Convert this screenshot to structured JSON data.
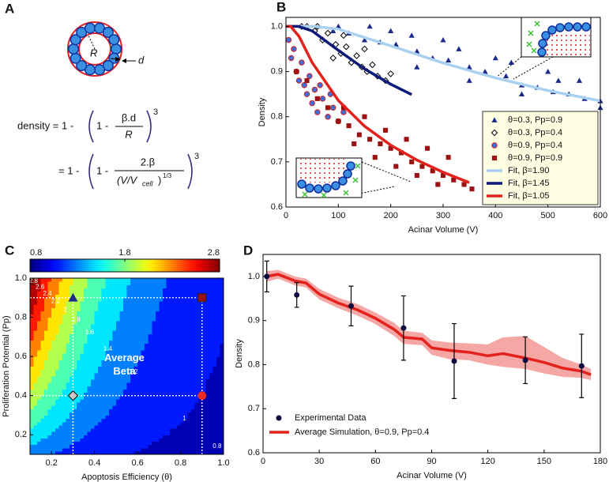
{
  "diagram": {
    "panel_label": "A",
    "radius_label": "R",
    "thickness_label": "d",
    "formula": {
      "lhs": "density = 1 -",
      "inner": "1 -",
      "num1": "β.d",
      "den1": "R",
      "exp": "3",
      "rhs2": "= 1 -",
      "inner2": "1 -",
      "num2": "2.β",
      "den2": "(V/V",
      "den2_sub": "cell",
      "den2_close": ")",
      "den2_exp": "1/3",
      "exp2": "3"
    }
  },
  "chart_data": [
    {
      "type": "scatter",
      "panel_label": "B",
      "xlabel": "Acinar Volume (V)",
      "ylabel": "Density",
      "xlim": [
        0,
        600
      ],
      "ylim": [
        0.6,
        1.02
      ],
      "xticks": [
        0,
        100,
        200,
        300,
        400,
        500,
        600
      ],
      "yticks": [
        0.6,
        0.7,
        0.8,
        0.9,
        {
          "value": 1,
          "label": "1.0"
        }
      ],
      "legend": "lower right",
      "series": [
        {
          "name": "θ=0.3, Pp=0.9",
          "marker": "triangle",
          "color": "#1c2a8c",
          "x": [
            60,
            90,
            120,
            150,
            180,
            210,
            250,
            280,
            310,
            350,
            380,
            420,
            450,
            480,
            510,
            540,
            570,
            600,
            200,
            300,
            400,
            500,
            560,
            250,
            350,
            450,
            600,
            100,
            160,
            240,
            330,
            430,
            520
          ],
          "values": [
            1.0,
            0.99,
            0.985,
            0.97,
            0.965,
            0.96,
            0.945,
            0.93,
            0.925,
            0.91,
            0.9,
            0.89,
            0.87,
            0.865,
            0.855,
            0.85,
            0.84,
            0.835,
            0.99,
            0.97,
            0.93,
            0.9,
            0.88,
            0.91,
            0.88,
            0.85,
            0.82,
            1.0,
            1.0,
            0.98,
            0.95,
            0.92,
            0.88
          ]
        },
        {
          "name": "θ=0.3, Pp=0.4",
          "marker": "diamond",
          "color": "#ffffff",
          "edgecolor": "#000000",
          "x": [
            40,
            55,
            70,
            80,
            95,
            105,
            115,
            125,
            135,
            145,
            155,
            165,
            175,
            190,
            200,
            110,
            150,
            90,
            30,
            60
          ],
          "values": [
            1.0,
            0.99,
            0.97,
            0.985,
            0.96,
            0.94,
            0.955,
            0.92,
            0.935,
            0.91,
            0.9,
            0.915,
            0.89,
            0.88,
            0.895,
            0.98,
            0.95,
            0.93,
            1.0,
            1.0
          ]
        },
        {
          "name": "θ=0.9, Pp=0.4",
          "marker": "circle",
          "color": "#3d6fdc",
          "edgecolor": "#d42020",
          "x": [
            5,
            10,
            15,
            20,
            25,
            30,
            35,
            40,
            45,
            50,
            55,
            60,
            70,
            80,
            90,
            100,
            110,
            65,
            85
          ],
          "values": [
            0.97,
            0.93,
            0.95,
            0.9,
            0.88,
            0.92,
            0.87,
            0.85,
            0.89,
            0.83,
            0.86,
            0.81,
            0.84,
            0.8,
            0.82,
            0.79,
            0.81,
            0.87,
            0.85
          ]
        },
        {
          "name": "θ=0.9, Pp=0.9",
          "marker": "square",
          "color": "#9a1212",
          "x": [
            20,
            40,
            60,
            80,
            100,
            120,
            140,
            160,
            180,
            200,
            220,
            240,
            260,
            280,
            300,
            320,
            340,
            110,
            150,
            190,
            230,
            270,
            310,
            130,
            170,
            210,
            250,
            290,
            355
          ],
          "values": [
            0.9,
            0.88,
            0.84,
            0.82,
            0.79,
            0.78,
            0.76,
            0.75,
            0.74,
            0.73,
            0.72,
            0.7,
            0.69,
            0.68,
            0.67,
            0.66,
            0.65,
            0.82,
            0.8,
            0.77,
            0.75,
            0.73,
            0.71,
            0.74,
            0.71,
            0.69,
            0.67,
            0.65,
            0.64
          ]
        },
        {
          "name": "Fit, β=1.90",
          "marker": "line",
          "color": "#a9d0ef",
          "x": [
            0,
            55,
            100,
            200,
            300,
            400,
            500,
            600
          ],
          "values": [
            1,
            1,
            0.994,
            0.957,
            0.919,
            0.886,
            0.858,
            0.835
          ]
        },
        {
          "name": "Fit, β=1.45",
          "marker": "line",
          "color": "#0d1a7a",
          "x": [
            0,
            24,
            50,
            100,
            150,
            200,
            240
          ],
          "values": [
            1,
            1,
            0.99,
            0.947,
            0.906,
            0.872,
            0.849
          ]
        },
        {
          "name": "Fit, β=1.05",
          "marker": "line",
          "color": "#e3221c",
          "x": [
            0,
            9,
            25,
            50,
            100,
            150,
            200,
            250,
            300,
            350
          ],
          "values": [
            1,
            1,
            0.978,
            0.92,
            0.836,
            0.779,
            0.737,
            0.704,
            0.677,
            0.654
          ]
        }
      ]
    },
    {
      "type": "contour",
      "panel_label": "C",
      "xlabel": "Apoptosis Efficiency (θ)",
      "ylabel": "Proliferation Potential (Pp)",
      "xlim": [
        0.1,
        1.0
      ],
      "ylim": [
        0.1,
        1.0
      ],
      "xticks": [
        0.2,
        0.4,
        0.6,
        0.8,
        {
          "value": 1,
          "label": "1.0"
        }
      ],
      "yticks": [
        0.2,
        0.4,
        0.6,
        0.8,
        {
          "value": 1,
          "label": "1.0"
        }
      ],
      "clim": [
        0.8,
        2.8
      ],
      "cticks": [
        0.8,
        1.8,
        2.8
      ],
      "levels": [
        0.8,
        1,
        1.2,
        1.4,
        1.6,
        1.8,
        2,
        2.2,
        2.4,
        2.6,
        2.8
      ],
      "annotation": [
        "Average",
        "Beta"
      ],
      "x": [
        0.1,
        0.2,
        0.3,
        0.4,
        0.5,
        0.6,
        0.7,
        0.8,
        0.9,
        1.0
      ],
      "y": [
        0.1,
        0.2,
        0.3,
        0.4,
        0.5,
        0.6,
        0.7,
        0.8,
        0.9,
        1.0
      ],
      "z": [
        [
          1.3,
          1.2,
          1.12,
          1.06,
          1.02,
          0.99,
          0.97,
          0.95,
          0.94,
          0.93
        ],
        [
          1.55,
          1.38,
          1.26,
          1.16,
          1.1,
          1.04,
          1.01,
          0.98,
          0.96,
          0.94
        ],
        [
          1.76,
          1.54,
          1.37,
          1.25,
          1.16,
          1.09,
          1.04,
          1.01,
          0.98,
          0.96
        ],
        [
          1.95,
          1.68,
          1.48,
          1.33,
          1.22,
          1.13,
          1.07,
          1.03,
          1.0,
          0.97
        ],
        [
          2.13,
          1.81,
          1.58,
          1.4,
          1.27,
          1.17,
          1.1,
          1.05,
          1.01,
          0.98
        ],
        [
          2.3,
          1.94,
          1.67,
          1.47,
          1.32,
          1.21,
          1.13,
          1.07,
          1.03,
          0.99
        ],
        [
          2.46,
          2.05,
          1.76,
          1.53,
          1.37,
          1.25,
          1.16,
          1.09,
          1.04,
          1.0
        ],
        [
          2.61,
          2.17,
          1.84,
          1.6,
          1.42,
          1.28,
          1.18,
          1.11,
          1.06,
          1.02
        ],
        [
          2.76,
          2.28,
          1.92,
          1.66,
          1.46,
          1.31,
          1.21,
          1.13,
          1.07,
          1.03
        ],
        [
          2.9,
          2.38,
          2.0,
          1.71,
          1.5,
          1.35,
          1.23,
          1.14,
          1.08,
          1.03
        ]
      ],
      "points": [
        {
          "x": 0.3,
          "y": 0.9,
          "marker": "triangle",
          "color": "#1c2a8c"
        },
        {
          "x": 0.3,
          "y": 0.4,
          "marker": "diamond",
          "color": "#c8c8c8",
          "edgecolor": "#000000"
        },
        {
          "x": 0.9,
          "y": 0.4,
          "marker": "circle",
          "color": "#ee2a1c"
        },
        {
          "x": 0.9,
          "y": 0.9,
          "marker": "square",
          "color": "#9a1212",
          "edgecolor": "#222222"
        }
      ]
    },
    {
      "type": "line",
      "panel_label": "D",
      "xlabel": "Acinar Volume (V)",
      "ylabel": "Density",
      "xlim": [
        0,
        180
      ],
      "ylim": [
        0.6,
        1.05
      ],
      "xticks": [
        0,
        30,
        60,
        90,
        120,
        150,
        180
      ],
      "yticks": [
        0.6,
        0.7,
        0.8,
        0.9,
        {
          "value": 1,
          "label": "1.0"
        }
      ],
      "legend": "lower left",
      "series": [
        {
          "name": "Experimental Data",
          "color": "#0b0b40",
          "x": [
            2,
            18,
            47,
            75,
            102,
            140,
            170
          ],
          "values": [
            1.0,
            0.958,
            0.933,
            0.883,
            0.808,
            0.81,
            0.797
          ],
          "errors": [
            0.035,
            0.028,
            0.045,
            0.073,
            0.085,
            0.053,
            0.072
          ]
        },
        {
          "name": "Average Simulation, θ=0.9, Pp=0.4",
          "color": "#e3221c",
          "band_color": "#f08a86",
          "x": [
            2,
            8,
            17,
            23,
            30,
            40,
            50,
            60,
            70,
            75,
            85,
            90,
            100,
            110,
            120,
            128,
            140,
            150,
            160,
            170,
            175
          ],
          "values": [
            1.0,
            1.005,
            0.99,
            0.985,
            0.96,
            0.94,
            0.925,
            0.905,
            0.88,
            0.862,
            0.858,
            0.838,
            0.832,
            0.828,
            0.82,
            0.825,
            0.815,
            0.805,
            0.792,
            0.785,
            0.777
          ],
          "band_high": [
            1.012,
            1.015,
            1.0,
            0.995,
            0.972,
            0.952,
            0.938,
            0.918,
            0.895,
            0.877,
            0.872,
            0.855,
            0.85,
            0.848,
            0.846,
            0.862,
            0.865,
            0.84,
            0.815,
            0.8,
            0.79
          ],
          "band_low": [
            0.988,
            0.995,
            0.98,
            0.975,
            0.948,
            0.928,
            0.912,
            0.892,
            0.865,
            0.847,
            0.844,
            0.822,
            0.812,
            0.81,
            0.8,
            0.795,
            0.79,
            0.78,
            0.772,
            0.77,
            0.765
          ]
        }
      ]
    }
  ]
}
